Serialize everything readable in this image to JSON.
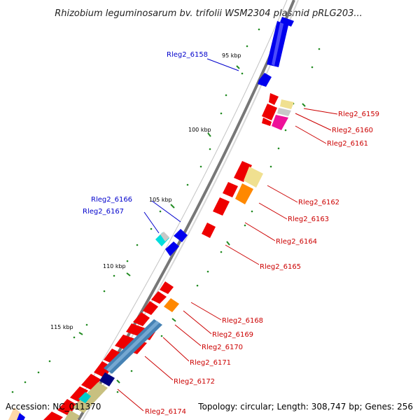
{
  "title": "Rhizobium leguminosarum bv. trifolii WSM2304 plasmid pRLG203...",
  "footer": {
    "accession": "Accession: NC_011370",
    "summary": "Topology: circular; Length: 308,747 bp; Genes: 256"
  },
  "ticks": [
    "95 kbp",
    "100 kbp",
    "105 kbp",
    "110 kbp",
    "115 kbp"
  ],
  "genes_forward": [
    "Rleg2_6158",
    "Rleg2_6166",
    "Rleg2_6167"
  ],
  "genes_reverse": [
    "Rleg2_6159",
    "Rleg2_6160",
    "Rleg2_6161",
    "Rleg2_6162",
    "Rleg2_6163",
    "Rleg2_6164",
    "Rleg2_6165",
    "Rleg2_6168",
    "Rleg2_6169",
    "Rleg2_6170",
    "Rleg2_6171",
    "Rleg2_6172",
    "Rleg2_6174"
  ],
  "colors": {
    "forward_label": "#0000cc",
    "reverse_label": "#cc0000",
    "forward_gene": "#0000ee",
    "reverse_gene": "#ee0000",
    "backbone": "#777777",
    "tick": "#228b22"
  }
}
